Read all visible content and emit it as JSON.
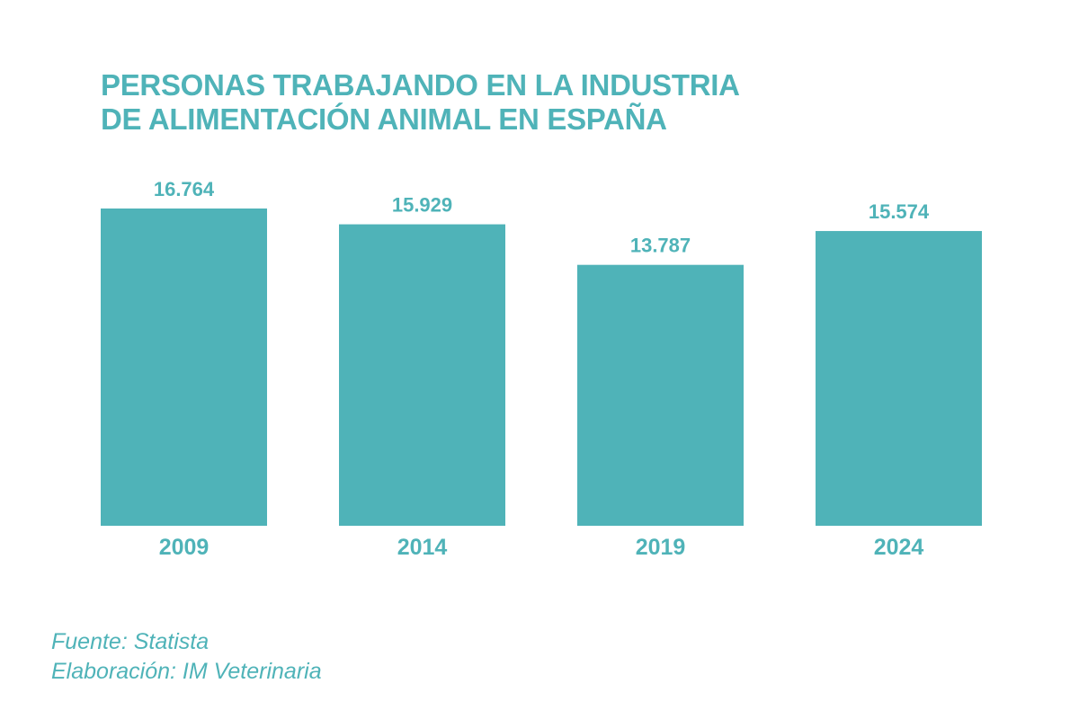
{
  "chart_data": {
    "type": "bar",
    "title": "PERSONAS TRABAJANDO EN LA INDUSTRIA DE ALIMENTACIÓN ANIMAL EN ESPAÑA",
    "title_lines": [
      "PERSONAS TRABAJANDO EN LA INDUSTRIA",
      "DE ALIMENTACIÓN ANIMAL EN ESPAÑA"
    ],
    "categories": [
      "2009",
      "2014",
      "2019",
      "2024"
    ],
    "values": [
      16764,
      15929,
      13787,
      15574
    ],
    "value_labels": [
      "16.764",
      "15.929",
      "13.787",
      "15.574"
    ],
    "xlabel": "",
    "ylabel": "",
    "ylim": [
      0,
      16764
    ],
    "grid": false,
    "legend": "none",
    "bar_color": "#4fb3b8"
  },
  "footer": {
    "source": "Fuente: Statista",
    "credit": "Elaboración: IM Veterinaria"
  }
}
